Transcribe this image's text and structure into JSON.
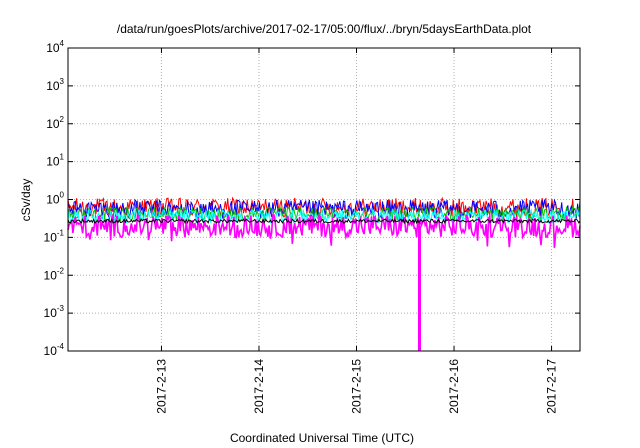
{
  "chart_data": {
    "type": "line",
    "title": "/data/run/goesPlots/archive/2017-02-17/05:00/flux/../bryn/5daysEarthData.plot",
    "xlabel": "Coordinated Universal Time (UTC)",
    "ylabel": "cSv/day",
    "yscale": "log",
    "ylim": [
      0.0001,
      10000
    ],
    "xlim": [
      "2017-02-12 01:00",
      "2017-02-17 07:00"
    ],
    "x_ticks": [
      "2017-2-13",
      "2017-2-14",
      "2017-2-15",
      "2017-2-16",
      "2017-2-17"
    ],
    "y_ticks": [
      {
        "base": "10",
        "exp": "-4"
      },
      {
        "base": "10",
        "exp": "-3"
      },
      {
        "base": "10",
        "exp": "-2"
      },
      {
        "base": "10",
        "exp": "-1"
      },
      {
        "base": "10",
        "exp": "0"
      },
      {
        "base": "10",
        "exp": "1"
      },
      {
        "base": "10",
        "exp": "2"
      },
      {
        "base": "10",
        "exp": "3"
      },
      {
        "base": "10",
        "exp": "4"
      }
    ],
    "grid": true,
    "legend": "none",
    "series": [
      {
        "color": "#ff0000",
        "level": 0.62,
        "spread": 0.25
      },
      {
        "color": "#0000ff",
        "level": 0.55,
        "spread": 0.25
      },
      {
        "color": "#00c000",
        "level": 0.42,
        "spread": 0.18
      },
      {
        "color": "#00ffff",
        "level": 0.36,
        "spread": 0.18
      },
      {
        "color": "#ff00ff",
        "level": 0.2,
        "spread": 0.3
      },
      {
        "color": "#000000",
        "level": 0.27,
        "spread": 0.05
      }
    ],
    "dropout": {
      "time": "2017-02-15 15:30",
      "value": 0.0001
    }
  }
}
